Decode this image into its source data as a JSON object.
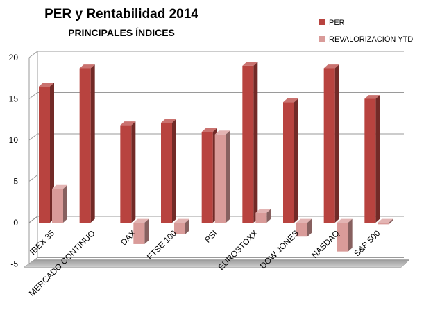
{
  "chart_data": {
    "type": "bar",
    "title": "PER y Rentabilidad 2014",
    "subtitle": "PRINCIPALES ÍNDICES",
    "categories": [
      "IBEX 35",
      "MERCADO CONTINUO",
      "DAX",
      "FTSE 100",
      "PSI",
      "EUROSTOXX",
      "DOW JONES",
      "NASDAQ",
      "S&P 500"
    ],
    "series": [
      {
        "name": "PER",
        "values": [
          16.5,
          18.7,
          11.8,
          12.1,
          11.0,
          19.0,
          14.6,
          18.7,
          15.0
        ]
      },
      {
        "name": "REVALORIZACIÓN YTD",
        "values": [
          4.1,
          null,
          -2.6,
          -1.4,
          10.7,
          1.2,
          -1.7,
          -3.5,
          -0.2
        ]
      }
    ],
    "colors": {
      "PER": "#b8433f",
      "REVALORIZACIÓN YTD": "#d99b99"
    },
    "yticks": [
      -5,
      0,
      5,
      10,
      15,
      20
    ],
    "ylim": [
      -5,
      20
    ],
    "xlabel": "",
    "ylabel": "",
    "grid": true,
    "legend_position": "top-right"
  }
}
